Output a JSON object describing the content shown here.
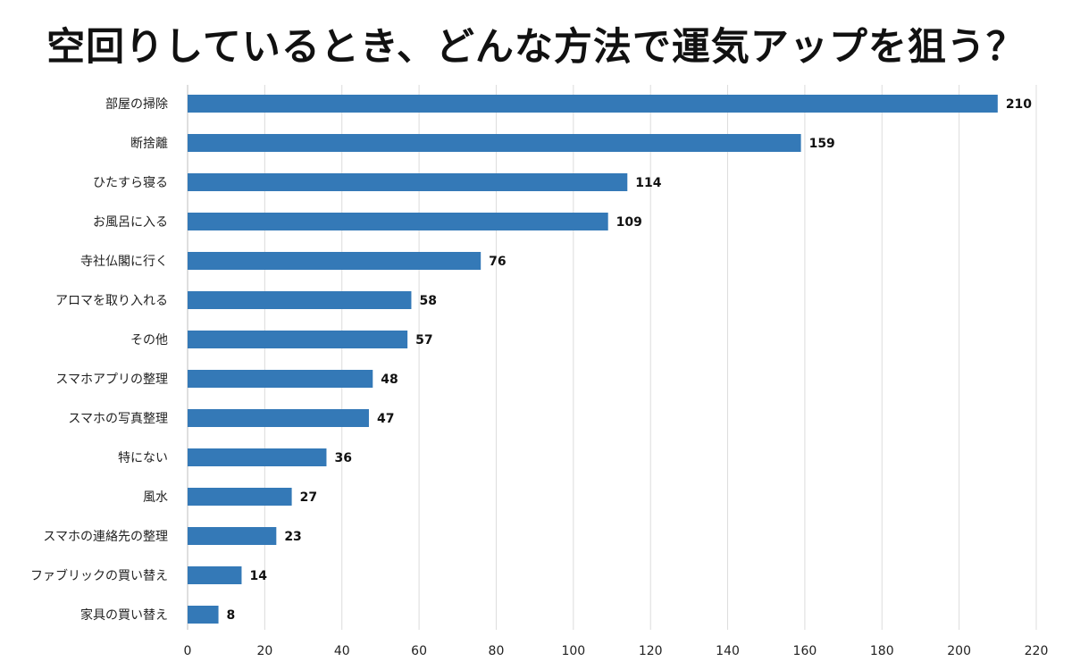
{
  "chart_data": {
    "type": "bar",
    "orientation": "horizontal",
    "title": "空回りしているとき、どんな方法で運気アップを狙う？",
    "categories": [
      "部屋の掃除",
      "断捨離",
      "ひたすら寝る",
      "お風呂に入る",
      "寺社仏閣に行く",
      "アロマを取り入れる",
      "その他",
      "スマホアプリの整理",
      "スマホの写真整理",
      "特にない",
      "風水",
      "スマホの連絡先の整理",
      "ファブリックの買い替え",
      "家具の買い替え"
    ],
    "values": [
      210,
      159,
      114,
      109,
      76,
      58,
      57,
      48,
      47,
      36,
      27,
      23,
      14,
      8
    ],
    "value_labels": [
      "210",
      "159",
      "114",
      "109",
      "76",
      "58",
      "57",
      "48",
      "47",
      "36",
      "27",
      "23",
      "14",
      "8"
    ],
    "xlim": [
      0,
      220
    ],
    "xticks": [
      0,
      20,
      40,
      60,
      80,
      100,
      120,
      140,
      160,
      180,
      200,
      220
    ],
    "xtick_labels": [
      "0",
      "20",
      "40",
      "60",
      "80",
      "100",
      "120",
      "140",
      "160",
      "180",
      "200",
      "220"
    ],
    "grid": true,
    "legend": "none",
    "colors": {
      "bar": "#3479b7",
      "grid": "#dcdcdc",
      "axis": "#bfbfbf"
    }
  }
}
